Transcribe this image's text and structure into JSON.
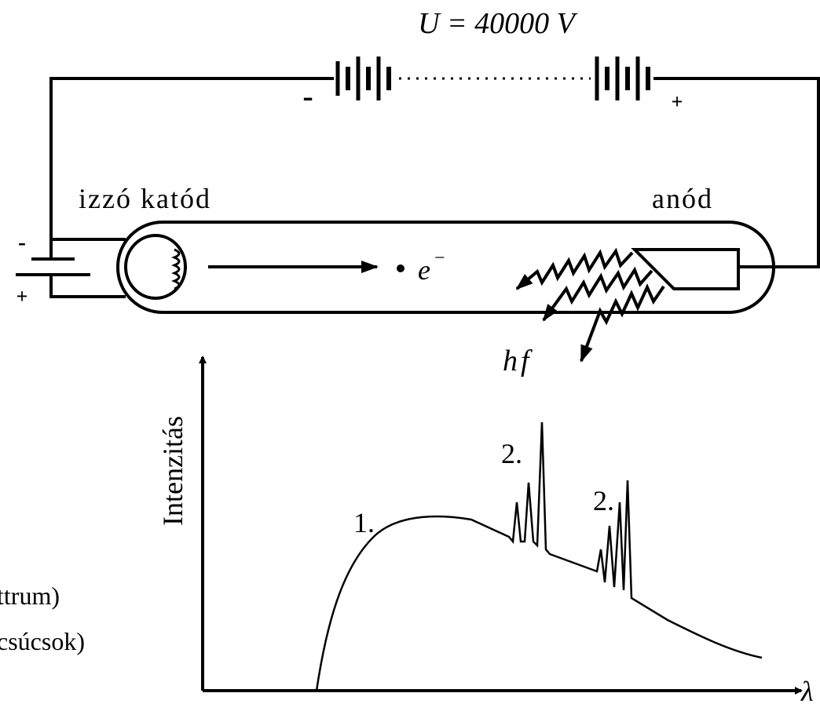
{
  "circuit": {
    "voltage_label": "U = 40000 V",
    "battery_minus": "-",
    "battery_plus": "+",
    "cathode_label": "izzó katód",
    "anode_label": "anód",
    "electron_symbol": "e",
    "electron_charge": "−",
    "photon_label": "hf",
    "heater_minus": "-",
    "heater_plus": "+"
  },
  "graph": {
    "y_axis_label": "Intenzitás",
    "x_axis_label": "λ",
    "continuous_label": "1.",
    "peak_labels": [
      "2.",
      "2."
    ]
  },
  "legend_fragments": [
    "ttrum)",
    "csúcsok)"
  ]
}
